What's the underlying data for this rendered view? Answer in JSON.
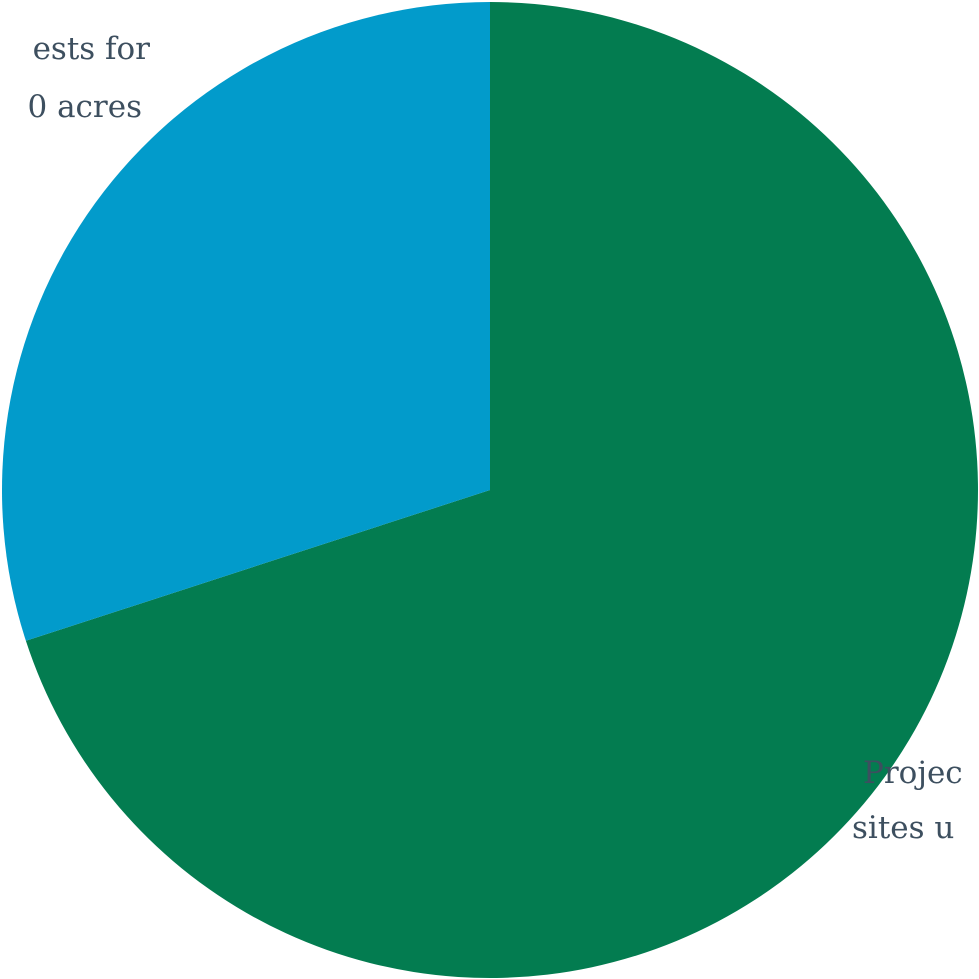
{
  "chart_data": {
    "type": "pie",
    "title": "",
    "start_angle_deg": 0,
    "direction": "clockwise",
    "slices": [
      {
        "label_lines": [
          "Projec",
          "sites u"
        ],
        "value": 70,
        "color": "#037c50"
      },
      {
        "label_lines": [
          "ests for",
          "0 acres"
        ],
        "value": 30,
        "color": "#029bcb"
      }
    ]
  }
}
